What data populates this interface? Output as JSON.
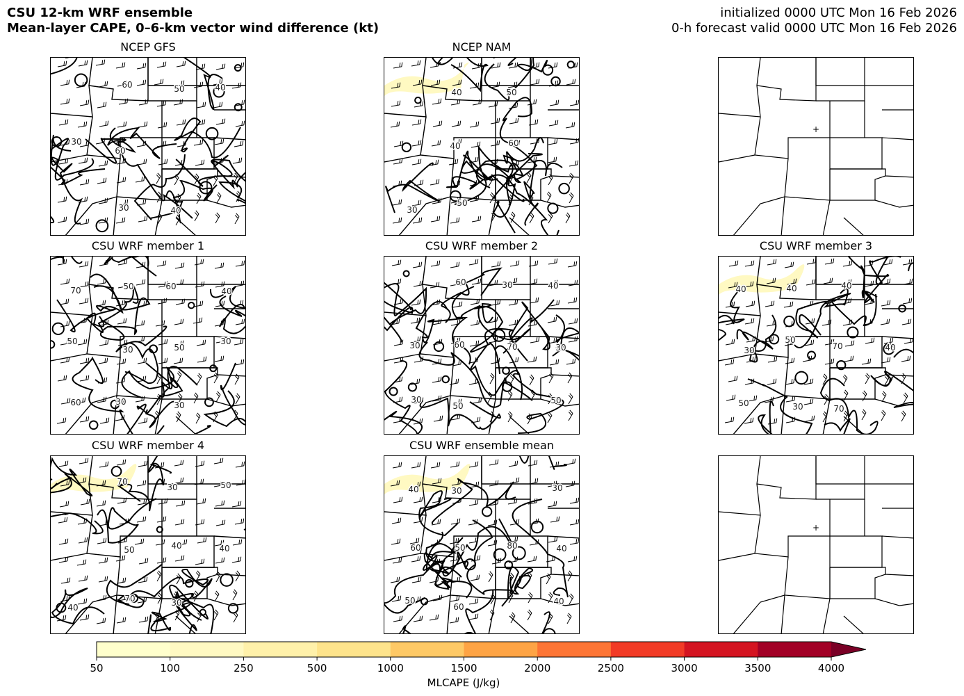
{
  "header": {
    "title_line1": "CSU 12-km WRF ensemble",
    "title_line2": "Mean-layer CAPE, 0–6-km vector wind difference (kt)",
    "init": "initialized 0000 UTC Mon 16 Feb 2026",
    "valid": "0-h forecast valid 0000 UTC Mon 16 Feb 2026"
  },
  "panels": [
    {
      "title": "NCEP GFS",
      "type": "field",
      "cape": false,
      "contour_labels": [
        "60",
        "40",
        "30",
        "50",
        "60",
        "40",
        "30"
      ]
    },
    {
      "title": "NCEP NAM",
      "type": "field",
      "cape": true,
      "contour_labels": [
        "40",
        "50",
        "60",
        "40",
        "30",
        "50"
      ]
    },
    {
      "title": "",
      "type": "basemap"
    },
    {
      "title": "CSU WRF member 1",
      "type": "field",
      "cape": false,
      "contour_labels": [
        "30",
        "60",
        "50",
        "50",
        "40",
        "60",
        "30",
        "30",
        "70",
        "30",
        "50"
      ]
    },
    {
      "title": "CSU WRF member 2",
      "type": "field",
      "cape": false,
      "contour_labels": [
        "30",
        "60",
        "50",
        "50",
        "40",
        "60",
        "30",
        "30",
        "70",
        "30"
      ]
    },
    {
      "title": "CSU WRF member 3",
      "type": "field",
      "cape": true,
      "contour_labels": [
        "40",
        "70",
        "50",
        "40",
        "70",
        "50",
        "40",
        "30",
        "30",
        "40"
      ]
    },
    {
      "title": "CSU WRF member 4",
      "type": "field",
      "cape": true,
      "contour_labels": [
        "40",
        "70",
        "50",
        "70",
        "40",
        "30",
        "40",
        "50",
        "30"
      ]
    },
    {
      "title": "CSU WRF ensemble mean",
      "type": "field",
      "cape": true,
      "contour_labels": [
        "40",
        "50",
        "60",
        "80",
        "50",
        "60",
        "40",
        "30",
        "30",
        "40"
      ]
    },
    {
      "title": "",
      "type": "basemap"
    }
  ],
  "colorbar": {
    "label": "MLCAPE (J/kg)",
    "ticks": [
      "50",
      "100",
      "250",
      "500",
      "1000",
      "1500",
      "2000",
      "2500",
      "3000",
      "3500",
      "4000"
    ],
    "colors": [
      "#ffffcc",
      "#fff9c2",
      "#fff1aa",
      "#fee48c",
      "#fec966",
      "#fea445",
      "#fd7535",
      "#f23b26",
      "#d41421",
      "#a20026"
    ],
    "extend_color": "#7a0026",
    "extend": "max"
  }
}
